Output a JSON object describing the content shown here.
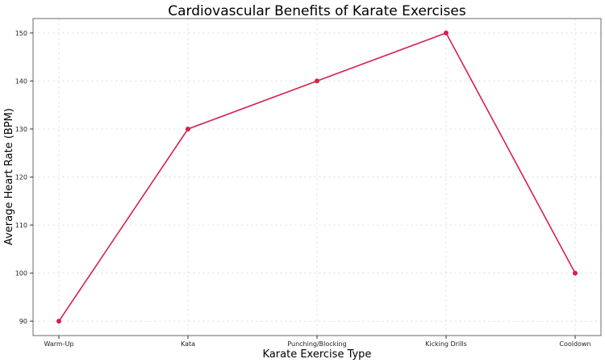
{
  "chart_data": {
    "type": "line",
    "title": "Cardiovascular Benefits of Karate Exercises",
    "xlabel": "Karate Exercise Type",
    "ylabel": "Average Heart Rate (BPM)",
    "categories": [
      "Warm-Up",
      "Kata",
      "Punching/Blocking",
      "Kicking Drills",
      "Cooldown"
    ],
    "values": [
      90,
      130,
      140,
      150,
      100
    ],
    "ylim": [
      87,
      153
    ],
    "yticks": [
      90,
      100,
      110,
      120,
      130,
      140,
      150
    ],
    "grid": true,
    "marker": "circle",
    "color": "#d6204e"
  }
}
